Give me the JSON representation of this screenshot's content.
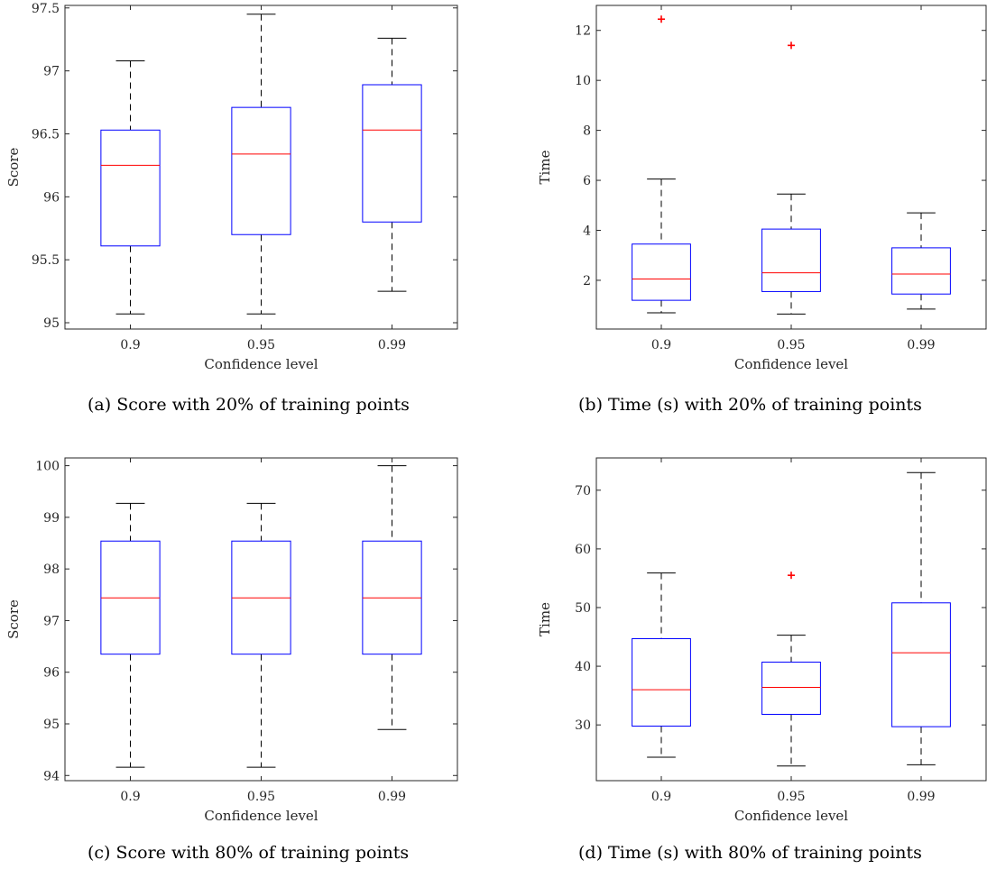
{
  "colors": {
    "box": "#0000ff",
    "median": "#ff0000",
    "whisker": "#000000",
    "outlier": "#ff0000",
    "axis": "#262626"
  },
  "chart_data": [
    {
      "type": "box",
      "caption": "(a) Score with 20% of training points",
      "xlabel": "Confidence level",
      "ylabel": "Score",
      "categories": [
        "0.9",
        "0.95",
        "0.99"
      ],
      "ylim": [
        94.95,
        97.52
      ],
      "yticks": [
        95,
        95.5,
        96,
        96.5,
        97,
        97.5
      ],
      "ytick_labels": [
        "95",
        "95.5",
        "96",
        "96.5",
        "97",
        "97.5"
      ],
      "boxes": [
        {
          "whisker_low": 95.07,
          "q1": 95.61,
          "median": 96.25,
          "q3": 96.53,
          "whisker_high": 97.08,
          "outliers": []
        },
        {
          "whisker_low": 95.07,
          "q1": 95.7,
          "median": 96.34,
          "q3": 96.71,
          "whisker_high": 97.45,
          "outliers": []
        },
        {
          "whisker_low": 95.25,
          "q1": 95.8,
          "median": 96.53,
          "q3": 96.89,
          "whisker_high": 97.26,
          "outliers": []
        }
      ]
    },
    {
      "type": "box",
      "caption": "(b) Time (s) with 20% of training points",
      "xlabel": "Confidence level",
      "ylabel": "Time",
      "categories": [
        "0.9",
        "0.95",
        "0.99"
      ],
      "ylim": [
        0.05,
        13.0
      ],
      "yticks": [
        2,
        4,
        6,
        8,
        10,
        12
      ],
      "ytick_labels": [
        "2",
        "4",
        "6",
        "8",
        "10",
        "12"
      ],
      "boxes": [
        {
          "whisker_low": 0.7,
          "q1": 1.2,
          "median": 2.05,
          "q3": 3.45,
          "whisker_high": 6.05,
          "outliers": [
            12.45
          ]
        },
        {
          "whisker_low": 0.65,
          "q1": 1.55,
          "median": 2.3,
          "q3": 4.05,
          "whisker_high": 5.45,
          "outliers": [
            11.4
          ]
        },
        {
          "whisker_low": 0.85,
          "q1": 1.45,
          "median": 2.25,
          "q3": 3.3,
          "whisker_high": 4.7,
          "outliers": []
        }
      ]
    },
    {
      "type": "box",
      "caption": "(c) Score with 80% of training points",
      "xlabel": "Confidence level",
      "ylabel": "Score",
      "categories": [
        "0.9",
        "0.95",
        "0.99"
      ],
      "ylim": [
        93.9,
        100.15
      ],
      "yticks": [
        94,
        95,
        96,
        97,
        98,
        99,
        100
      ],
      "ytick_labels": [
        "94",
        "95",
        "96",
        "97",
        "98",
        "99",
        "100"
      ],
      "boxes": [
        {
          "whisker_low": 94.16,
          "q1": 96.35,
          "median": 97.44,
          "q3": 98.54,
          "whisker_high": 99.27,
          "outliers": []
        },
        {
          "whisker_low": 94.16,
          "q1": 96.35,
          "median": 97.44,
          "q3": 98.54,
          "whisker_high": 99.27,
          "outliers": []
        },
        {
          "whisker_low": 94.89,
          "q1": 96.35,
          "median": 97.44,
          "q3": 98.54,
          "whisker_high": 100.0,
          "outliers": []
        }
      ]
    },
    {
      "type": "box",
      "caption": "(d) Time (s) with 80% of training points",
      "xlabel": "Confidence level",
      "ylabel": "Time",
      "categories": [
        "0.9",
        "0.95",
        "0.99"
      ],
      "ylim": [
        20.5,
        75.5
      ],
      "yticks": [
        30,
        40,
        50,
        60,
        70
      ],
      "ytick_labels": [
        "30",
        "40",
        "50",
        "60",
        "70"
      ],
      "boxes": [
        {
          "whisker_low": 24.5,
          "q1": 29.8,
          "median": 36.0,
          "q3": 44.7,
          "whisker_high": 55.9,
          "outliers": []
        },
        {
          "whisker_low": 23.0,
          "q1": 31.8,
          "median": 36.4,
          "q3": 40.7,
          "whisker_high": 45.3,
          "outliers": [
            55.5
          ]
        },
        {
          "whisker_low": 23.2,
          "q1": 29.7,
          "median": 42.3,
          "q3": 50.8,
          "whisker_high": 73.0,
          "outliers": []
        }
      ]
    }
  ]
}
